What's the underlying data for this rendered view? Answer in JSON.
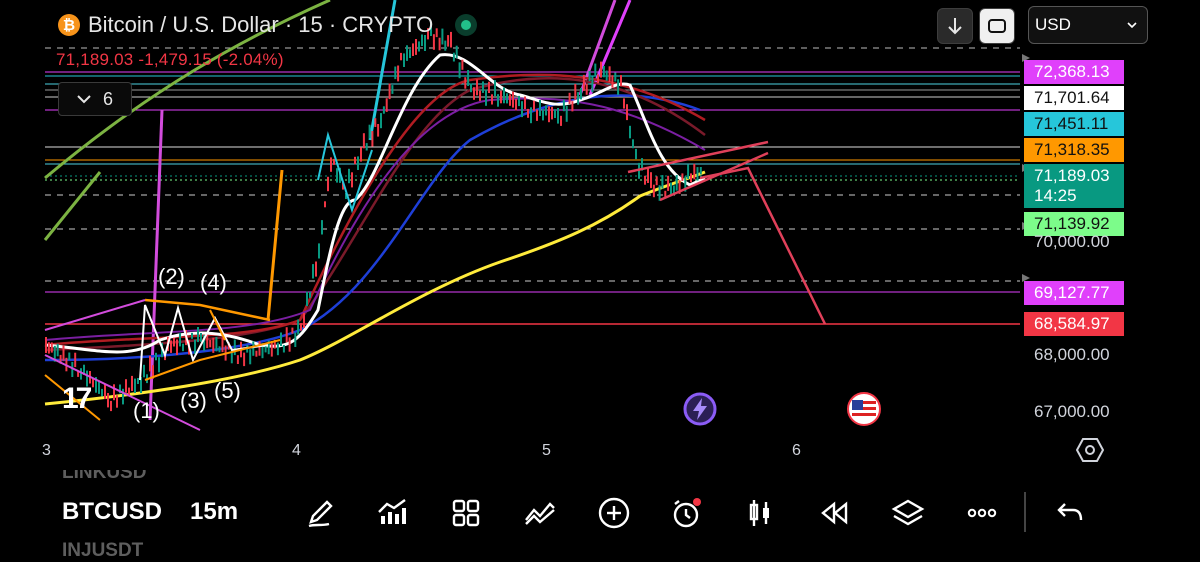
{
  "header": {
    "title": "Bitcoin / U.S. Dollar · 15 · CRYPTO",
    "btc_icon": "bitcoin-icon",
    "ohlc": "71,189.03  -1,479.15 (-2.04%)",
    "indicator_count": "6",
    "live_status_color": "#22c08a"
  },
  "top_controls": {
    "download_icon": "down-arrow-icon",
    "fullscreen_icon": "fullscreen-icon",
    "currency": "USD"
  },
  "price_labels": {
    "p1": "72,368.13",
    "p2": "71,701.64",
    "p3": "71,451.11",
    "p4": "71,318.35",
    "p5": "71,189.03",
    "p5_timer": "14:25",
    "p6": "71,139.92",
    "p7": "69,127.77",
    "p8": "68,584.97"
  },
  "price_label_colors": {
    "p1": "#e040fb",
    "p2": "#ffffff",
    "p3": "#26c6da",
    "p4": "#ff9800",
    "p5": "#089981",
    "p6": "#7cfc8a",
    "p7": "#e040fb",
    "p8": "#f23645"
  },
  "y_axis": {
    "t70000": "70,000.00",
    "t68000": "68,000.00",
    "t67000": "67,000.00"
  },
  "x_axis": {
    "d3": "3",
    "d4": "4",
    "d5": "5",
    "d6": "6"
  },
  "wave_labels": {
    "w1": "(1)",
    "w2": "(2)",
    "w3": "(3)",
    "w4": "(4)",
    "w5": "(5)"
  },
  "bottom_bar": {
    "symbol": "BTCUSD",
    "timeframe": "15m",
    "ghost_above": "LINKUSD",
    "ghost_below": "INJUSDT",
    "tools": [
      "draw-icon",
      "indicators-icon",
      "templates-icon",
      "compare-icon",
      "add-icon",
      "alert-icon",
      "chart-type-icon",
      "replay-icon",
      "layers-icon",
      "more-icon",
      "undo-icon"
    ]
  }
}
